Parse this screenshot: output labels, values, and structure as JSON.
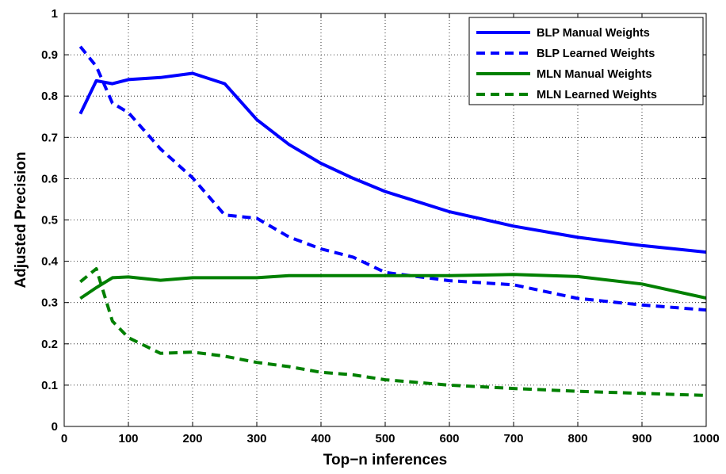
{
  "chart_data": {
    "type": "line",
    "xlabel": "Top−n inferences",
    "ylabel": "Adjusted Precision",
    "xlim": [
      0,
      1000
    ],
    "ylim": [
      0,
      1
    ],
    "xticks": [
      0,
      100,
      200,
      300,
      400,
      500,
      600,
      700,
      800,
      900,
      1000
    ],
    "yticks": [
      0,
      0.1,
      0.2,
      0.3,
      0.4,
      0.5,
      0.6,
      0.7,
      0.8,
      0.9,
      1
    ],
    "ytick_labels": [
      "0",
      "0.1",
      "0.2",
      "0.3",
      "0.4",
      "0.5",
      "0.6",
      "0.7",
      "0.8",
      "0.9",
      "1"
    ],
    "grid": true,
    "legend_position": "top-right",
    "series": [
      {
        "name": "BLP Manual Weights",
        "color": "#0000ff",
        "dash": "solid",
        "x": [
          25,
          50,
          75,
          100,
          150,
          200,
          250,
          300,
          350,
          400,
          450,
          500,
          600,
          700,
          800,
          900,
          1000
        ],
        "y": [
          0.757,
          0.837,
          0.83,
          0.84,
          0.845,
          0.855,
          0.83,
          0.743,
          0.683,
          0.637,
          0.601,
          0.569,
          0.52,
          0.485,
          0.458,
          0.438,
          0.422
        ]
      },
      {
        "name": "BLP Learned Weights",
        "color": "#0000ff",
        "dash": "dashed",
        "x": [
          25,
          50,
          75,
          100,
          150,
          200,
          250,
          300,
          350,
          400,
          450,
          500,
          600,
          700,
          800,
          900,
          1000
        ],
        "y": [
          0.92,
          0.872,
          0.783,
          0.76,
          0.672,
          0.602,
          0.512,
          0.504,
          0.459,
          0.43,
          0.41,
          0.373,
          0.353,
          0.343,
          0.31,
          0.294,
          0.282
        ]
      },
      {
        "name": "MLN Manual Weights",
        "color": "#008000",
        "dash": "solid",
        "x": [
          25,
          50,
          75,
          100,
          150,
          200,
          250,
          300,
          350,
          400,
          450,
          500,
          600,
          700,
          800,
          900,
          1000
        ],
        "y": [
          0.31,
          0.336,
          0.36,
          0.362,
          0.354,
          0.36,
          0.36,
          0.36,
          0.365,
          0.365,
          0.365,
          0.365,
          0.365,
          0.368,
          0.363,
          0.345,
          0.311
        ]
      },
      {
        "name": "MLN Learned Weights",
        "color": "#008000",
        "dash": "dashed",
        "x": [
          25,
          50,
          75,
          100,
          150,
          200,
          250,
          300,
          350,
          400,
          450,
          500,
          600,
          700,
          800,
          900,
          1000
        ],
        "y": [
          0.35,
          0.382,
          0.255,
          0.215,
          0.177,
          0.18,
          0.17,
          0.155,
          0.145,
          0.131,
          0.125,
          0.113,
          0.1,
          0.092,
          0.085,
          0.08,
          0.075
        ]
      }
    ]
  }
}
